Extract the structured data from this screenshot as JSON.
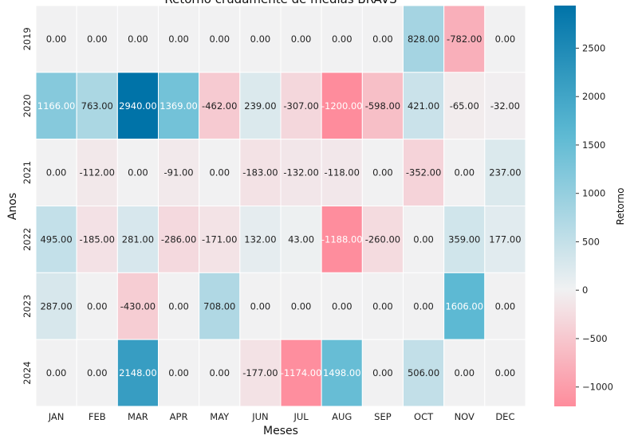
{
  "chart_data": {
    "type": "heatmap",
    "title": "Retorno crudamente de medias BRAVS",
    "xlabel": "Meses",
    "ylabel": "Anos",
    "colorbar_label": "Retorno",
    "colorbar_ticks": [
      -1000,
      -500,
      0,
      500,
      1000,
      1500,
      2000,
      2500
    ],
    "colorbar_tick_labels": [
      "−1000",
      "−500",
      "0",
      "500",
      "1000",
      "1500",
      "2000",
      "2500"
    ],
    "color_range": [
      -1200,
      2940
    ],
    "colors": {
      "negative": "#fe8c9c",
      "neutral": "#f1f1f2",
      "positive": "#0073a8",
      "mid_positive": "#5cb9d3"
    },
    "x_categories": [
      "JAN",
      "FEB",
      "MAR",
      "APR",
      "MAY",
      "JUN",
      "JUL",
      "AUG",
      "SEP",
      "OCT",
      "NOV",
      "DEC"
    ],
    "y_categories": [
      "2019",
      "2020",
      "2021",
      "2022",
      "2023",
      "2024"
    ],
    "values": [
      [
        0,
        0,
        0,
        0,
        0,
        0,
        0,
        0,
        0,
        828,
        -782,
        0
      ],
      [
        1166,
        763,
        2940,
        1369,
        -462,
        239,
        -307,
        -1200,
        -598,
        421,
        -65,
        -32
      ],
      [
        0,
        -112,
        0,
        -91,
        0,
        -183,
        -132,
        -118,
        0,
        -352,
        0,
        237
      ],
      [
        495,
        -185,
        281,
        -286,
        -171,
        132,
        43,
        -1188,
        -260,
        0,
        359,
        177
      ],
      [
        287,
        0,
        -430,
        0,
        708,
        0,
        0,
        0,
        0,
        0,
        1606,
        0
      ],
      [
        0,
        0,
        2148,
        0,
        0,
        -177,
        -1174,
        1498,
        0,
        506,
        0,
        0
      ]
    ],
    "value_labels": [
      [
        "0.00",
        "0.00",
        "0.00",
        "0.00",
        "0.00",
        "0.00",
        "0.00",
        "0.00",
        "0.00",
        "828.00",
        "-782.00",
        "0.00"
      ],
      [
        "1166.00",
        "763.00",
        "2940.00",
        "1369.00",
        "-462.00",
        "239.00",
        "-307.00",
        "-1200.00",
        "-598.00",
        "421.00",
        "-65.00",
        "-32.00"
      ],
      [
        "0.00",
        "-112.00",
        "0.00",
        "-91.00",
        "0.00",
        "-183.00",
        "-132.00",
        "-118.00",
        "0.00",
        "-352.00",
        "0.00",
        "237.00"
      ],
      [
        "495.00",
        "-185.00",
        "281.00",
        "-286.00",
        "-171.00",
        "132.00",
        "43.00",
        "-1188.00",
        "-260.00",
        "0.00",
        "359.00",
        "177.00"
      ],
      [
        "287.00",
        "0.00",
        "-430.00",
        "0.00",
        "708.00",
        "0.00",
        "0.00",
        "0.00",
        "0.00",
        "0.00",
        "1606.00",
        "0.00"
      ],
      [
        "0.00",
        "0.00",
        "2148.00",
        "0.00",
        "0.00",
        "-177.00",
        "-1174.00",
        "1498.00",
        "0.00",
        "506.00",
        "0.00",
        "0.00"
      ]
    ],
    "legend": "colorbar-right",
    "grid": false
  }
}
